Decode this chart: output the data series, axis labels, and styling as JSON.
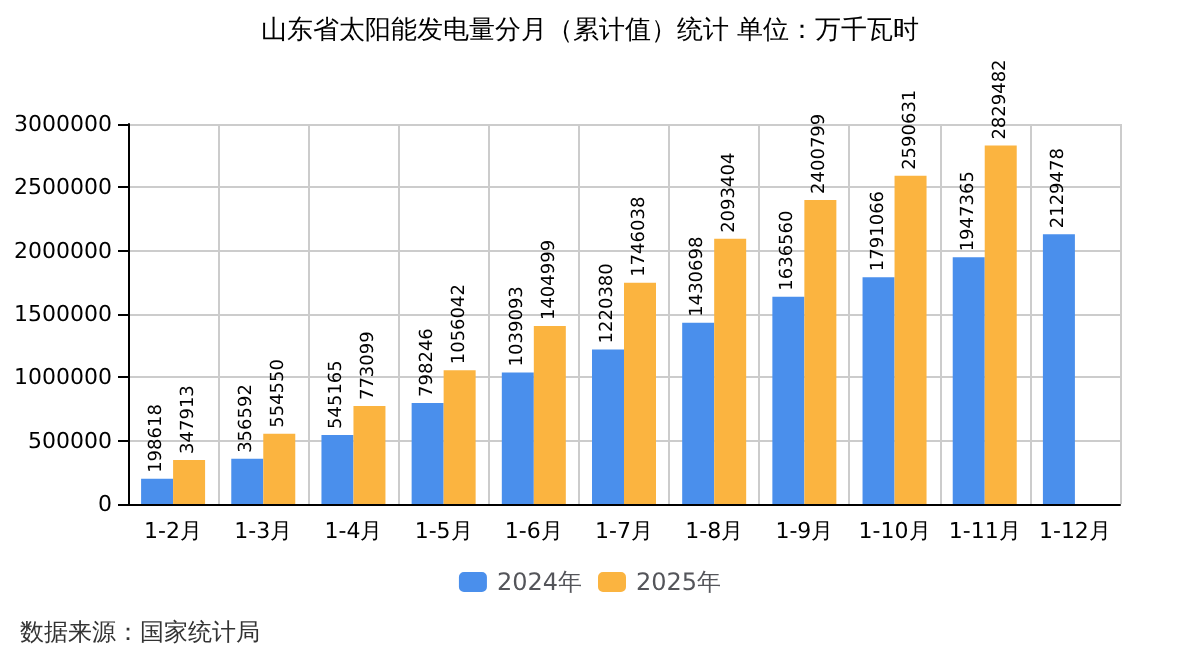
{
  "chart_data": {
    "type": "bar",
    "title": "山东省太阳能发电量分月（累计值）统计 单位：万千瓦时",
    "categories": [
      "1-2月",
      "1-3月",
      "1-4月",
      "1-5月",
      "1-6月",
      "1-7月",
      "1-8月",
      "1-9月",
      "1-10月",
      "1-11月",
      "1-12月"
    ],
    "series": [
      {
        "name": "2024年",
        "color": "#4a8fec",
        "values": [
          198618,
          356592,
          545165,
          798246,
          1039093,
          1220380,
          1430698,
          1636560,
          1791066,
          1947365,
          2129478
        ]
      },
      {
        "name": "2025年",
        "color": "#fbb440",
        "values": [
          347913,
          554550,
          773099,
          1056042,
          1404999,
          1746038,
          2093404,
          2400799,
          2590631,
          2829482,
          null
        ]
      }
    ],
    "ylim": [
      0,
      3000000
    ],
    "yticks": [
      0,
      500000,
      1000000,
      1500000,
      2000000,
      2500000,
      3000000
    ],
    "grid": true,
    "legend": "bottom",
    "data_labels": true,
    "annotations": [
      "数据来源：国家统计局"
    ]
  }
}
